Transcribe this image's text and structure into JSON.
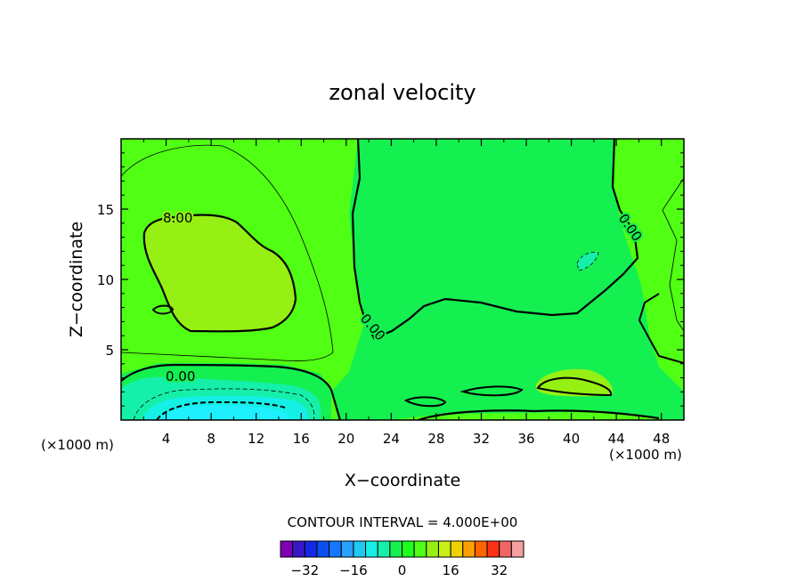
{
  "chart_data": {
    "type": "heatmap",
    "title": "zonal velocity",
    "xlabel": "X−coordinate",
    "ylabel": "Z−coordinate",
    "x_unit": "(×1000 m)",
    "xlim": [
      0,
      50
    ],
    "ylim": [
      0,
      20
    ],
    "x_ticks": [
      "4",
      "8",
      "12",
      "16",
      "20",
      "24",
      "28",
      "32",
      "36",
      "40",
      "44",
      "48"
    ],
    "y_ticks": [
      "5",
      "10",
      "15"
    ],
    "contour_interval_text": "CONTOUR INTERVAL = 4.000E+00",
    "contour_labels": [
      "8.00",
      "0.00",
      "0.00",
      "0.00"
    ],
    "colorbar": {
      "levels": [
        -36,
        -32,
        -28,
        -24,
        -20,
        -16,
        -12,
        -8,
        -4,
        0,
        4,
        8,
        12,
        16,
        20,
        24,
        28,
        32,
        36
      ],
      "tick_labels": [
        "−32",
        "−16",
        "0",
        "16",
        "32"
      ],
      "colors": [
        "#7f00b3",
        "#3a18c8",
        "#1428e6",
        "#0a50f0",
        "#1478ff",
        "#2aa0ff",
        "#1ec8f0",
        "#14f0e6",
        "#14f0aa",
        "#14f050",
        "#1eff1e",
        "#50ff14",
        "#96f014",
        "#c8f014",
        "#f0d200",
        "#ffa000",
        "#ff6400",
        "#ff3214",
        "#f06464",
        "#f5a0a0"
      ]
    },
    "regions": [
      {
        "value_range": "0 to 4",
        "color": "#14f050",
        "where": "x 20–44, z 8–20 and lower right"
      },
      {
        "value_range": "4 to 8",
        "color": "#50ff14",
        "where": "left upper region and x 44–50"
      },
      {
        "value_range": "8 to 12",
        "color": "#96f014",
        "where": "x 2–16, z 6–14"
      },
      {
        "value_range": "0 to -4",
        "color": "#14f0aa",
        "where": "x 0–17, z 0–3"
      },
      {
        "value_range": "-8 to -12",
        "color": "#14f0e6",
        "where": "x 2–16, z 0–1"
      }
    ]
  }
}
